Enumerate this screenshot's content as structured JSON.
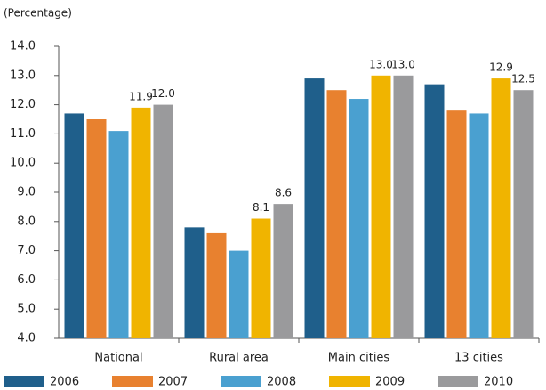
{
  "chart_data": {
    "type": "bar",
    "y_label": "(Percentage)",
    "categories": [
      "National",
      "Rural area",
      "Main cities",
      "13 cities"
    ],
    "series": [
      {
        "name": "2006",
        "color": "#1f5f8b",
        "values": [
          11.7,
          7.8,
          12.9,
          12.7
        ]
      },
      {
        "name": "2007",
        "color": "#e8812f",
        "values": [
          11.5,
          7.6,
          12.5,
          11.8
        ]
      },
      {
        "name": "2008",
        "color": "#4aa0d0",
        "values": [
          11.1,
          7.0,
          12.2,
          11.7
        ]
      },
      {
        "name": "2009",
        "color": "#f0b400",
        "values": [
          11.9,
          8.1,
          13.0,
          12.9
        ],
        "value_labels": [
          "11.9",
          "8.1",
          "13.0",
          "12.9"
        ]
      },
      {
        "name": "2010",
        "color": "#9a9a9c",
        "values": [
          12.0,
          8.6,
          13.0,
          12.5
        ],
        "value_labels": [
          "12.0",
          "8.6",
          "13.0",
          "12.5"
        ]
      }
    ],
    "ylim": [
      4,
      14
    ],
    "yticks": [
      {
        "value": 4,
        "label": "4.0"
      },
      {
        "value": 5,
        "label": "5.0"
      },
      {
        "value": 6,
        "label": "6.0"
      },
      {
        "value": 7,
        "label": "7.0"
      },
      {
        "value": 8,
        "label": "8.0"
      },
      {
        "value": 9,
        "label": "9.0"
      },
      {
        "value": 10,
        "label": "10.0"
      },
      {
        "value": 11,
        "label": "11.0"
      },
      {
        "value": 12,
        "label": "12.0"
      },
      {
        "value": 13,
        "label": "13.0"
      },
      {
        "value": 14,
        "label": "14.0"
      }
    ],
    "legend": "bottom"
  }
}
